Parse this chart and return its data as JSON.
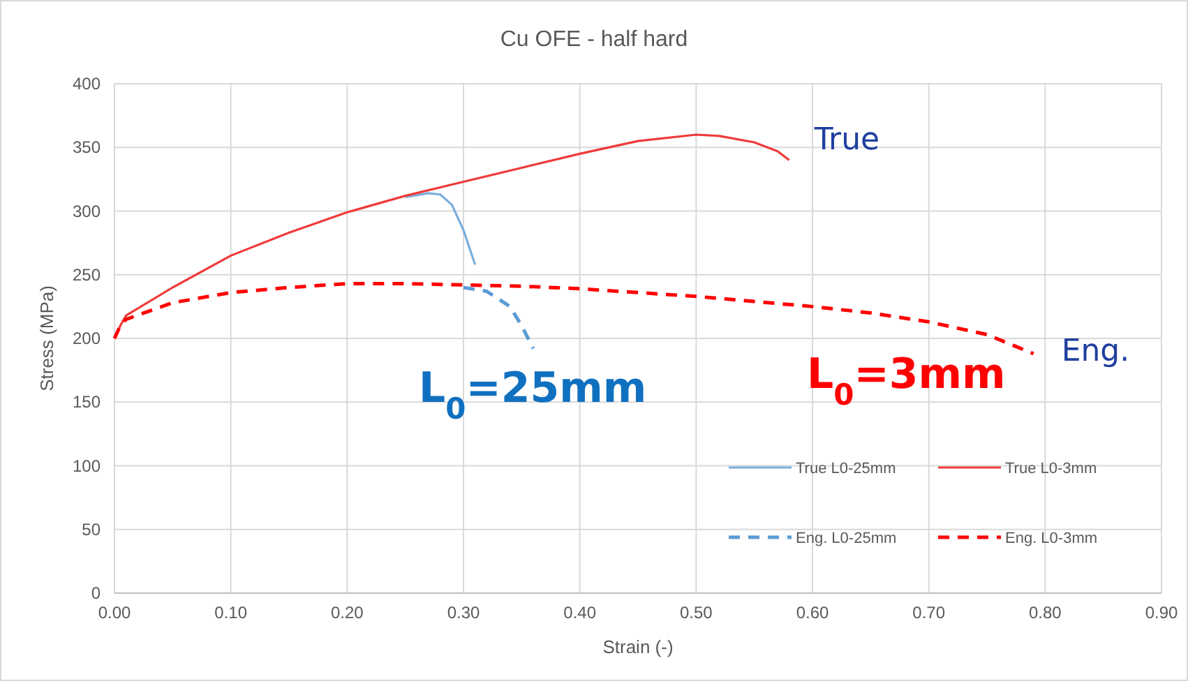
{
  "chart_data": {
    "type": "line",
    "title": "Cu OFE - half hard",
    "xlabel": "Strain (-)",
    "ylabel": "Stress (MPa)",
    "xlim": [
      0,
      0.9
    ],
    "xticks": [
      {
        "value": 0,
        "label": "0.00"
      },
      {
        "value": 0.1,
        "label": "0.10"
      },
      {
        "value": 0.2,
        "label": "0.20"
      },
      {
        "value": 0.3,
        "label": "0.30"
      },
      {
        "value": 0.4,
        "label": "0.40"
      },
      {
        "value": 0.5,
        "label": "0.50"
      },
      {
        "value": 0.6,
        "label": "0.60"
      },
      {
        "value": 0.7,
        "label": "0.70"
      },
      {
        "value": 0.8,
        "label": "0.80"
      },
      {
        "value": 0.9,
        "label": "0.90"
      }
    ],
    "ylim": [
      0,
      400
    ],
    "yticks": [
      0,
      50,
      100,
      150,
      200,
      250,
      300,
      350,
      400
    ],
    "grid": true,
    "legend": "bottom right",
    "marker": "none",
    "series": [
      {
        "name": "True L0-25mm",
        "color": "#7aaedc",
        "line_style": "solid",
        "x": [
          0.25,
          0.27,
          0.28,
          0.29,
          0.3,
          0.31
        ],
        "values": [
          311,
          314,
          313,
          305,
          285,
          258
        ]
      },
      {
        "name": "True L0-3mm",
        "color": "#f03a3a",
        "line_style": "solid",
        "x": [
          0,
          0.005,
          0.01,
          0.05,
          0.1,
          0.15,
          0.2,
          0.25,
          0.3,
          0.35,
          0.4,
          0.45,
          0.5,
          0.52,
          0.55,
          0.57,
          0.58
        ],
        "values": [
          200,
          210,
          218,
          240,
          265,
          283,
          299,
          312,
          323,
          334,
          345,
          355,
          360,
          359,
          354,
          347,
          340
        ]
      },
      {
        "name": "Eng. L0-25mm",
        "color": "#5b9bd5",
        "line_style": "dashed",
        "x": [
          0.3,
          0.32,
          0.34,
          0.35,
          0.36
        ],
        "values": [
          240,
          237,
          225,
          210,
          192
        ]
      },
      {
        "name": "Eng. L0-3mm",
        "color": "#ff0000",
        "line_style": "dashed",
        "x": [
          0,
          0.005,
          0.01,
          0.05,
          0.1,
          0.15,
          0.2,
          0.25,
          0.3,
          0.35,
          0.4,
          0.45,
          0.5,
          0.55,
          0.6,
          0.65,
          0.7,
          0.75,
          0.79
        ],
        "values": [
          200,
          210,
          215,
          228,
          236,
          240,
          243,
          243,
          242,
          241,
          239,
          236,
          233,
          229,
          225,
          220,
          213,
          203,
          188
        ]
      }
    ],
    "annotations": [
      {
        "text": "True",
        "x": 0.58,
        "y": 340
      },
      {
        "text": "Eng.",
        "x": 0.79,
        "y": 188
      },
      "L$_{0}$=25mm",
      "L$_{0}$=3mm"
    ]
  }
}
